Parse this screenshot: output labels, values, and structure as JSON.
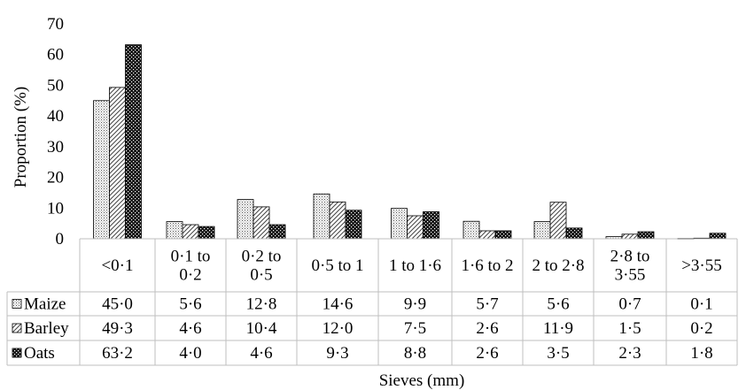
{
  "chart_data": {
    "type": "bar",
    "xlabel": "Sieves (mm)",
    "ylabel": "Proportion (%)",
    "ylim": [
      0,
      70
    ],
    "yticks": [
      0,
      10,
      20,
      30,
      40,
      50,
      60,
      70
    ],
    "grid": false,
    "legend": "data table rows",
    "categories": [
      [
        "<0·1"
      ],
      [
        "0·1 to",
        "0·2"
      ],
      [
        "0·2 to",
        "0·5"
      ],
      [
        "0·5 to 1"
      ],
      [
        "1 to 1·6"
      ],
      [
        "1·6 to 2"
      ],
      [
        "2 to 2·8"
      ],
      [
        "2·8 to",
        "3·55"
      ],
      [
        ">3·55"
      ]
    ],
    "series": [
      {
        "name": "Maize",
        "pattern": "dotted",
        "values": [
          45.0,
          5.6,
          12.8,
          14.6,
          9.9,
          5.7,
          5.6,
          0.7,
          0.1
        ],
        "labels": [
          "45·0",
          "5·6",
          "12·8",
          "14·6",
          "9·9",
          "5·7",
          "5·6",
          "0·7",
          "0·1"
        ]
      },
      {
        "name": "Barley",
        "pattern": "hatched",
        "values": [
          49.3,
          4.6,
          10.4,
          12.0,
          7.5,
          2.6,
          11.9,
          1.5,
          0.2
        ],
        "labels": [
          "49·3",
          "4·6",
          "10·4",
          "12·0",
          "7·5",
          "2·6",
          "11·9",
          "1·5",
          "0·2"
        ]
      },
      {
        "name": "Oats",
        "pattern": "dark-checker",
        "values": [
          63.2,
          4.0,
          4.6,
          9.3,
          8.8,
          2.6,
          3.5,
          2.3,
          1.8
        ],
        "labels": [
          "63·2",
          "4·0",
          "4·6",
          "9·3",
          "8·8",
          "2·6",
          "3·5",
          "2·3",
          "1·8"
        ]
      }
    ]
  }
}
